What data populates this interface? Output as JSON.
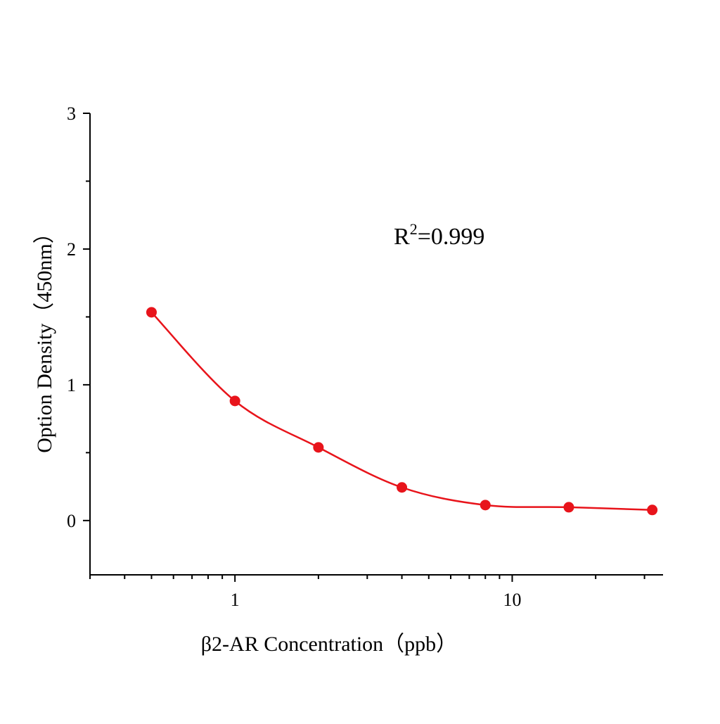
{
  "chart_data": {
    "type": "scatter",
    "title": "",
    "xlabel": "β2-AR Concentration（ppb）",
    "ylabel": "Option Density（450nm）",
    "xscale": "log",
    "xlim": [
      0.3,
      35
    ],
    "ylim": [
      -0.4,
      3
    ],
    "x_ticks": [
      1,
      10
    ],
    "x_tick_labels": [
      "1",
      "10"
    ],
    "y_ticks": [
      0,
      1,
      2,
      3
    ],
    "y_tick_labels": [
      "0",
      "1",
      "2",
      "3"
    ],
    "grid": false,
    "annotation": {
      "text_base": "R",
      "text_sup": "2",
      "text_rest": "=0.999"
    },
    "series": [
      {
        "x": [
          0.5,
          1,
          2,
          4,
          8,
          16,
          32
        ],
        "y": [
          1.534,
          0.881,
          0.539,
          0.244,
          0.114,
          0.098,
          0.078
        ],
        "color": "#e8141b",
        "fit_line": true
      }
    ]
  }
}
